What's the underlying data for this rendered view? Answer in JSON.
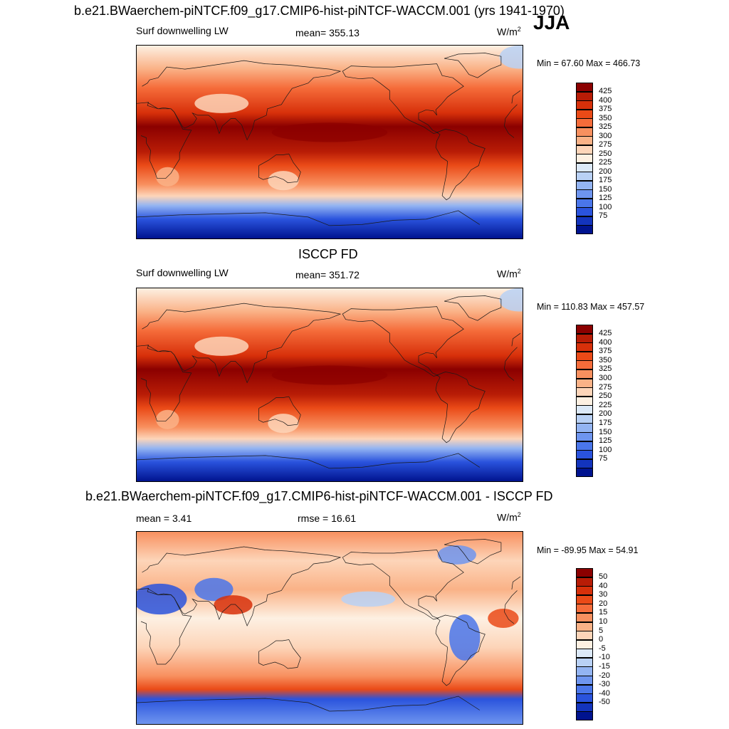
{
  "figure": {
    "top_title": "b.e21.BWaerchem-piNTCF.f09_g17.CMIP6-hist-piNTCF-WACCM.001 (yrs 1941-1970)",
    "season": "JJA",
    "middle_title": "ISCCP FD",
    "bottom_title": "b.e21.BWaerchem-piNTCF.f09_g17.CMIP6-hist-piNTCF-WACCM.001 - ISCCP FD"
  },
  "panels": [
    {
      "id": "model",
      "variable": "Surf downwelling LW",
      "stat_label": "mean= 355.13",
      "units_base": "W/m",
      "units_exp": "2",
      "minmax": "Min =  67.60 Max = 466.73"
    },
    {
      "id": "obs",
      "variable": "Surf downwelling LW",
      "stat_label": "mean= 351.72",
      "units_base": "W/m",
      "units_exp": "2",
      "minmax": "Min = 110.83 Max = 457.57"
    },
    {
      "id": "diff",
      "variable": "mean =   3.41",
      "stat_label": "rmse =  16.61",
      "units_base": "W/m",
      "units_exp": "2",
      "minmax": "Min = -89.95 Max =  54.91"
    }
  ],
  "colorbars": {
    "abs_levels": [
      "425",
      "400",
      "375",
      "350",
      "325",
      "300",
      "275",
      "250",
      "225",
      "200",
      "175",
      "150",
      "125",
      "100",
      "75"
    ],
    "abs_colors": [
      "#8b0000",
      "#b81c06",
      "#d7300a",
      "#ea4a17",
      "#f56c3a",
      "#f8905f",
      "#fab287",
      "#fdd5b9",
      "#fdf0e2",
      "#dce9f8",
      "#b9d1f5",
      "#93b4f2",
      "#6e95ef",
      "#4a76ea",
      "#2a53dd",
      "#1334bd",
      "#00138f"
    ],
    "diff_levels": [
      "50",
      "40",
      "30",
      "20",
      "15",
      "10",
      "5",
      "0",
      "-5",
      "-10",
      "-15",
      "-20",
      "-30",
      "-40",
      "-50"
    ],
    "diff_colors": [
      "#8b0000",
      "#b81c06",
      "#d7300a",
      "#ea4a17",
      "#f56c3a",
      "#f8905f",
      "#fab287",
      "#fdd5b9",
      "#fdf0e2",
      "#dce9f8",
      "#b9d1f5",
      "#93b4f2",
      "#6e95ef",
      "#4a76ea",
      "#2a53dd",
      "#1334bd",
      "#00138f"
    ]
  },
  "chart_data": [
    {
      "type": "heatmap",
      "title": "Surf downwelling LW",
      "subtitle": "b.e21.BWaerchem-piNTCF.f09_g17.CMIP6-hist-piNTCF-WACCM.001 (yrs 1941-1970)",
      "season": "JJA",
      "units": "W/m2",
      "mean": 355.13,
      "min": 67.6,
      "max": 466.73,
      "contour_levels": [
        75,
        100,
        125,
        150,
        175,
        200,
        225,
        250,
        275,
        300,
        325,
        350,
        375,
        400,
        425
      ],
      "zonal_pattern": "highest (>425) in tropics/Asian monsoon, decreasing poleward, lowest (<75) over Antarctica"
    },
    {
      "type": "heatmap",
      "title": "Surf downwelling LW",
      "subtitle": "ISCCP FD",
      "units": "W/m2",
      "mean": 351.72,
      "min": 110.83,
      "max": 457.57,
      "contour_levels": [
        75,
        100,
        125,
        150,
        175,
        200,
        225,
        250,
        275,
        300,
        325,
        350,
        375,
        400,
        425
      ]
    },
    {
      "type": "heatmap",
      "title": "b.e21.BWaerchem-piNTCF.f09_g17.CMIP6-hist-piNTCF-WACCM.001 - ISCCP FD",
      "units": "W/m2",
      "mean": 3.41,
      "rmse": 16.61,
      "min": -89.95,
      "max": 54.91,
      "contour_levels": [
        -50,
        -40,
        -30,
        -20,
        -15,
        -10,
        -5,
        0,
        5,
        10,
        15,
        20,
        30,
        40,
        50
      ]
    }
  ]
}
